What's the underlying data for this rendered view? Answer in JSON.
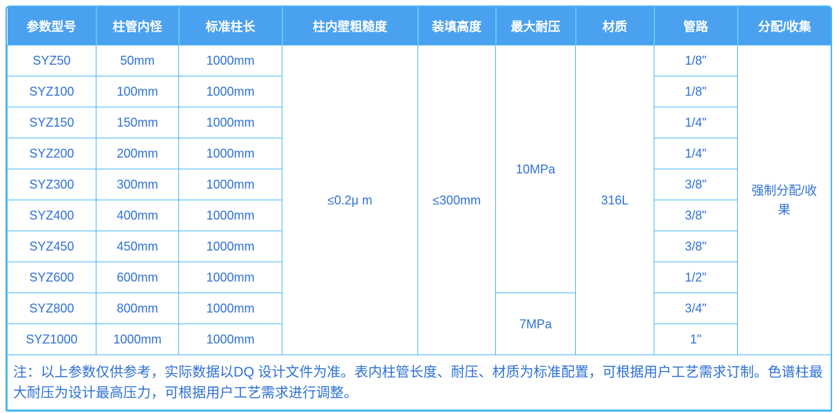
{
  "table": {
    "headers": [
      "参数型号",
      "柱管内怪",
      "标准柱长",
      "柱内壁粗糙度",
      "装填高度",
      "最大耐压",
      "材质",
      "管路",
      "分配/收集"
    ],
    "rows": [
      {
        "model": "SYZ50",
        "inner_diameter": "50mm",
        "length": "1000mm",
        "pipe": "1/8\""
      },
      {
        "model": "SYZ100",
        "inner_diameter": "100mm",
        "length": "1000mm",
        "pipe": "1/8\""
      },
      {
        "model": "SYZ150",
        "inner_diameter": "150mm",
        "length": "1000mm",
        "pipe": "1/4\""
      },
      {
        "model": "SYZ200",
        "inner_diameter": "200mm",
        "length": "1000mm",
        "pipe": "1/4\""
      },
      {
        "model": "SYZ300",
        "inner_diameter": "300mm",
        "length": "1000mm",
        "pipe": "3/8\""
      },
      {
        "model": "SYZ400",
        "inner_diameter": "400mm",
        "length": "1000mm",
        "pipe": "3/8\""
      },
      {
        "model": "SYZ450",
        "inner_diameter": "450mm",
        "length": "1000mm",
        "pipe": "3/8\""
      },
      {
        "model": "SYZ600",
        "inner_diameter": "600mm",
        "length": "1000mm",
        "pipe": "1/2\""
      },
      {
        "model": "SYZ800",
        "inner_diameter": "800mm",
        "length": "1000mm",
        "pipe": "3/4\""
      },
      {
        "model": "SYZ1000",
        "inner_diameter": "1000mm",
        "length": "1000mm",
        "pipe": "1\""
      }
    ],
    "merged": {
      "roughness": "≤0.2μ m",
      "packing_height": "≤300mm",
      "pressure_high": "10MPa",
      "pressure_low": "7MPa",
      "material": "316L",
      "distribution": "强制分配/收果"
    },
    "note": "注：以上参数仅供参考，实际数据以DQ 设计文件为准。表内柱管长度、耐压、材质为标准配置，可根据用户工艺需求订制。色谱柱最大耐压为设计最高压力，可根据用户工艺需求进行调整。"
  },
  "colors": {
    "header_bg": "#4aa1f0",
    "header_divider": "#63c6f8",
    "grid_line": "#45b6f3",
    "text_blue": "#2e71d5",
    "header_text": "#ffffff"
  }
}
